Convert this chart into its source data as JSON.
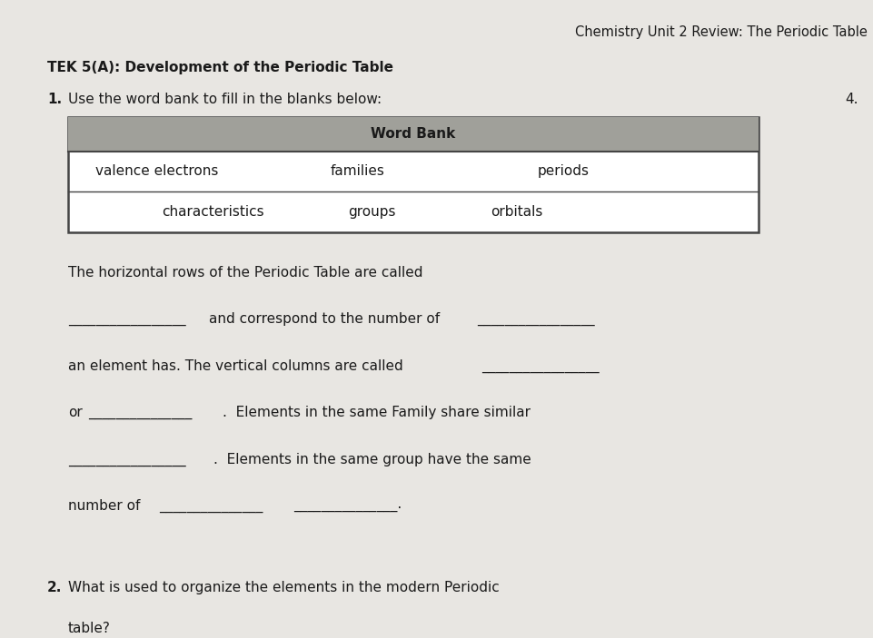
{
  "bg_color": "#e8e6e2",
  "title": "Chemistry Unit 2 Review: The Periodic Table",
  "title_fontsize": 10.5,
  "section_header": "TEK 5(A): Development of the Periodic Table",
  "section_fontsize": 11,
  "q1_label": "1.",
  "q1_text": "Use the word bank to fill in the blanks below:",
  "q4_label": "4.",
  "word_bank_header": "Word Bank",
  "word_bank_row1": [
    "valence electrons",
    "families",
    "periods"
  ],
  "word_bank_row2": [
    "characteristics",
    "groups",
    "orbitals"
  ],
  "word_bank_header_bg": "#a0a09a",
  "word_bank_bg": "#ffffff",
  "word_bank_border": "#444444",
  "para_line1": "The horizontal rows of the Periodic Table are called",
  "para_line2a": "and correspond to the number of",
  "para_line3a": "an element has. The vertical columns are called",
  "para_line4a": "or",
  "para_line4b": ".  Elements in the same Family share similar",
  "para_line5b": ".  Elements in the same group have the same",
  "para_line6a": "number of",
  "q2_label": "2.",
  "q2_line1": "What is used to organize the elements in the modern Periodic",
  "q2_line2": "table?",
  "text_color": "#1a1a1a",
  "blank_color": "#1a1a1a",
  "body_fontsize": 11
}
